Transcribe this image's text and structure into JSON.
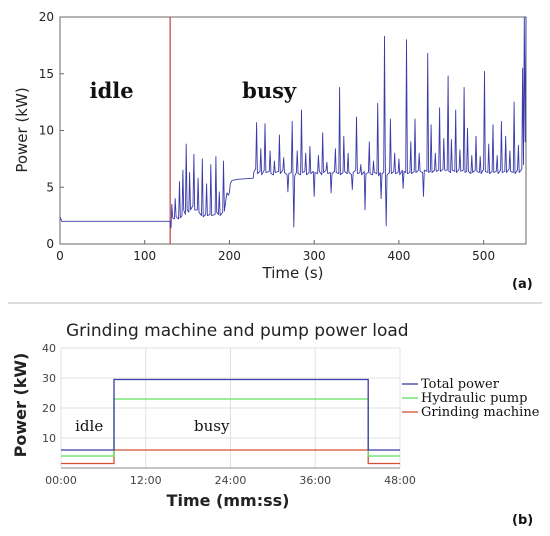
{
  "colors": {
    "total": "#3a3aaa",
    "hydraulic": "#5ee05e",
    "grinding": "#d45030",
    "divider": "#c04040",
    "axis": "#555555",
    "grid": "#e0e0e0"
  },
  "chart_data": [
    {
      "type": "line",
      "panel_label": "(a)",
      "xlabel": "Time (s)",
      "ylabel": "Power (kW)",
      "xlim": [
        0,
        550
      ],
      "ylim": [
        0,
        20
      ],
      "x_ticks": [
        0,
        100,
        200,
        300,
        400,
        500
      ],
      "x_tick_labels": [
        "0",
        "100",
        "200",
        "300",
        "400",
        "500"
      ],
      "y_ticks": [
        0,
        5,
        10,
        15,
        20
      ],
      "y_tick_labels": [
        "0",
        "5",
        "10",
        "15",
        "20"
      ],
      "grid": false,
      "state_change_x": 130,
      "regions": [
        {
          "label": "idle",
          "x": 35,
          "y": 13.5
        },
        {
          "label": "busy",
          "x": 215,
          "y": 13.5
        }
      ],
      "series": [
        {
          "color_key": "total",
          "points": [
            [
              0,
              2.4
            ],
            [
              2,
              2.0
            ],
            [
              130,
              2.0
            ],
            [
              131,
              1.4
            ],
            [
              132,
              3.5
            ],
            [
              133,
              2.3
            ],
            [
              135,
              2.2
            ],
            [
              136,
              4.0
            ],
            [
              137,
              2.4
            ],
            [
              140,
              2.2
            ],
            [
              141,
              5.5
            ],
            [
              142,
              2.3
            ],
            [
              144,
              2.5
            ],
            [
              145,
              6.5
            ],
            [
              146,
              3.0
            ],
            [
              148,
              2.6
            ],
            [
              149,
              8.8
            ],
            [
              150,
              3.0
            ],
            [
              152,
              2.8
            ],
            [
              153,
              6.3
            ],
            [
              154,
              3.0
            ],
            [
              157,
              3.4
            ],
            [
              158,
              7.9
            ],
            [
              159,
              3.0
            ],
            [
              162,
              3.0
            ],
            [
              163,
              5.8
            ],
            [
              164,
              2.8
            ],
            [
              167,
              2.5
            ],
            [
              168,
              7.5
            ],
            [
              169,
              2.4
            ],
            [
              172,
              2.6
            ],
            [
              173,
              5.3
            ],
            [
              174,
              2.5
            ],
            [
              177,
              2.6
            ],
            [
              178,
              7.0
            ],
            [
              179,
              2.5
            ],
            [
              183,
              2.6
            ],
            [
              184,
              7.7
            ],
            [
              185,
              2.8
            ],
            [
              187,
              2.6
            ],
            [
              188,
              4.6
            ],
            [
              189,
              2.5
            ],
            [
              192,
              2.8
            ],
            [
              193,
              7.3
            ],
            [
              194,
              2.9
            ],
            [
              196,
              4.0
            ],
            [
              197,
              4.5
            ],
            [
              199,
              4.3
            ],
            [
              200,
              4.6
            ],
            [
              201,
              5.3
            ],
            [
              203,
              5.6
            ],
            [
              210,
              5.7
            ],
            [
              220,
              5.75
            ],
            [
              228,
              5.8
            ],
            [
              229,
              6.4
            ],
            [
              231,
              6.6
            ],
            [
              232,
              10.7
            ],
            [
              233,
              6.2
            ],
            [
              236,
              6.4
            ],
            [
              237,
              8.4
            ],
            [
              238,
              6.1
            ],
            [
              241,
              6.5
            ],
            [
              242,
              10.6
            ],
            [
              243,
              6.3
            ],
            [
              247,
              6.4
            ],
            [
              248,
              8.2
            ],
            [
              249,
              6.2
            ],
            [
              252,
              6.1
            ],
            [
              253,
              7.3
            ],
            [
              254,
              6.3
            ],
            [
              258,
              6.4
            ],
            [
              259,
              9.6
            ],
            [
              260,
              6.2
            ],
            [
              263,
              6.5
            ],
            [
              264,
              7.6
            ],
            [
              265,
              6.3
            ],
            [
              268,
              6.1
            ],
            [
              269,
              4.6
            ],
            [
              270,
              6.2
            ],
            [
              273,
              6.3
            ],
            [
              274,
              10.8
            ],
            [
              275,
              5.9
            ],
            [
              276,
              1.5
            ],
            [
              277,
              6.0
            ],
            [
              279,
              6.3
            ],
            [
              280,
              8.2
            ],
            [
              281,
              6.2
            ],
            [
              284,
              6.1
            ],
            [
              285,
              11.8
            ],
            [
              286,
              6.3
            ],
            [
              289,
              6.4
            ],
            [
              290,
              8.0
            ],
            [
              291,
              6.1
            ],
            [
              294,
              6.3
            ],
            [
              295,
              8.6
            ],
            [
              296,
              6.2
            ],
            [
              299,
              6.4
            ],
            [
              300,
              4.2
            ],
            [
              301,
              6.3
            ],
            [
              304,
              6.2
            ],
            [
              305,
              7.8
            ],
            [
              306,
              6.4
            ],
            [
              309,
              6.1
            ],
            [
              310,
              9.8
            ],
            [
              311,
              6.3
            ],
            [
              314,
              6.5
            ],
            [
              315,
              7.2
            ],
            [
              316,
              6.2
            ],
            [
              319,
              6.3
            ],
            [
              320,
              4.5
            ],
            [
              321,
              6.2
            ],
            [
              324,
              6.4
            ],
            [
              325,
              8.4
            ],
            [
              326,
              6.3
            ],
            [
              329,
              6.2
            ],
            [
              330,
              13.8
            ],
            [
              331,
              6.1
            ],
            [
              334,
              6.3
            ],
            [
              335,
              9.5
            ],
            [
              336,
              6.4
            ],
            [
              339,
              6.2
            ],
            [
              340,
              8.0
            ],
            [
              341,
              6.3
            ],
            [
              344,
              6.1
            ],
            [
              345,
              4.8
            ],
            [
              346,
              6.3
            ],
            [
              349,
              6.5
            ],
            [
              350,
              11.2
            ],
            [
              351,
              6.2
            ],
            [
              354,
              6.3
            ],
            [
              355,
              7.0
            ],
            [
              356,
              6.1
            ],
            [
              359,
              6.4
            ],
            [
              360,
              3.0
            ],
            [
              361,
              6.2
            ],
            [
              364,
              6.3
            ],
            [
              365,
              9.0
            ],
            [
              366,
              6.2
            ],
            [
              369,
              6.1
            ],
            [
              370,
              7.3
            ],
            [
              371,
              6.3
            ],
            [
              374,
              6.2
            ],
            [
              375,
              12.4
            ],
            [
              376,
              6.0
            ],
            [
              378,
              6.3
            ],
            [
              379,
              4.0
            ],
            [
              380,
              6.2
            ],
            [
              382,
              6.3
            ],
            [
              383,
              18.3
            ],
            [
              384,
              6.0
            ],
            [
              385,
              1.6
            ],
            [
              386,
              6.1
            ],
            [
              389,
              6.3
            ],
            [
              390,
              11.0
            ],
            [
              391,
              6.2
            ],
            [
              394,
              6.4
            ],
            [
              395,
              8.0
            ],
            [
              396,
              6.2
            ],
            [
              399,
              6.3
            ],
            [
              400,
              7.5
            ],
            [
              401,
              6.1
            ],
            [
              404,
              6.5
            ],
            [
              405,
              4.9
            ],
            [
              406,
              6.4
            ],
            [
              408,
              6.3
            ],
            [
              409,
              18.0
            ],
            [
              410,
              6.2
            ],
            [
              413,
              6.3
            ],
            [
              414,
              9.0
            ],
            [
              415,
              6.2
            ],
            [
              418,
              6.4
            ],
            [
              419,
              11.0
            ],
            [
              420,
              6.3
            ],
            [
              423,
              6.5
            ],
            [
              424,
              8.0
            ],
            [
              425,
              6.4
            ],
            [
              428,
              6.3
            ],
            [
              429,
              4.2
            ],
            [
              430,
              6.5
            ],
            [
              433,
              6.4
            ],
            [
              434,
              16.8
            ],
            [
              435,
              6.3
            ],
            [
              437,
              6.4
            ],
            [
              438,
              10.5
            ],
            [
              439,
              6.3
            ],
            [
              442,
              6.5
            ],
            [
              443,
              8.0
            ],
            [
              444,
              6.4
            ],
            [
              447,
              6.5
            ],
            [
              448,
              12.0
            ],
            [
              449,
              6.4
            ],
            [
              452,
              6.6
            ],
            [
              453,
              9.3
            ],
            [
              454,
              6.5
            ],
            [
              457,
              6.5
            ],
            [
              458,
              14.8
            ],
            [
              459,
              6.4
            ],
            [
              461,
              6.3
            ],
            [
              462,
              9.2
            ],
            [
              463,
              6.5
            ],
            [
              466,
              6.4
            ],
            [
              467,
              11.8
            ],
            [
              468,
              6.3
            ],
            [
              471,
              6.6
            ],
            [
              472,
              8.3
            ],
            [
              473,
              6.4
            ],
            [
              476,
              6.5
            ],
            [
              477,
              13.8
            ],
            [
              478,
              6.3
            ],
            [
              480,
              6.4
            ],
            [
              481,
              10.2
            ],
            [
              482,
              6.4
            ],
            [
              485,
              6.2
            ],
            [
              486,
              7.8
            ],
            [
              487,
              6.3
            ],
            [
              490,
              6.5
            ],
            [
              491,
              9.5
            ],
            [
              492,
              6.4
            ],
            [
              495,
              6.3
            ],
            [
              496,
              7.7
            ],
            [
              497,
              6.2
            ],
            [
              500,
              6.6
            ],
            [
              501,
              15.2
            ],
            [
              502,
              6.4
            ],
            [
              505,
              6.3
            ],
            [
              506,
              8.8
            ],
            [
              507,
              6.2
            ],
            [
              510,
              6.4
            ],
            [
              511,
              10.5
            ],
            [
              512,
              6.3
            ],
            [
              515,
              6.4
            ],
            [
              516,
              7.8
            ],
            [
              517,
              6.2
            ],
            [
              520,
              6.5
            ],
            [
              521,
              10.8
            ],
            [
              522,
              6.3
            ],
            [
              525,
              6.4
            ],
            [
              526,
              9.5
            ],
            [
              527,
              6.3
            ],
            [
              530,
              6.6
            ],
            [
              531,
              8.2
            ],
            [
              532,
              6.4
            ],
            [
              535,
              6.3
            ],
            [
              536,
              12.5
            ],
            [
              537,
              6.2
            ],
            [
              540,
              6.5
            ],
            [
              541,
              8.7
            ],
            [
              542,
              6.3
            ],
            [
              545,
              6.6
            ],
            [
              546,
              15.5
            ],
            [
              547,
              7.0
            ],
            [
              548,
              20.0
            ],
            [
              549,
              9.0
            ],
            [
              550,
              20.0
            ]
          ]
        }
      ]
    },
    {
      "type": "line",
      "panel_label": "(b)",
      "title": "Grinding machine and pump power load",
      "xlabel": "Time (mm:ss)",
      "ylabel": "Power (kW)",
      "xlim": [
        0,
        2880
      ],
      "ylim": [
        0,
        40
      ],
      "x_ticks": [
        0,
        720,
        1440,
        2160,
        2880
      ],
      "x_tick_labels": [
        "00:00",
        "12:00",
        "24:00",
        "36:00",
        "48:00"
      ],
      "y_ticks": [
        10,
        20,
        30,
        40
      ],
      "y_tick_labels": [
        "10",
        "20",
        "30",
        "40"
      ],
      "grid": true,
      "legend_position": "right",
      "regions": [
        {
          "label": "idle",
          "x": 120,
          "y": 14
        },
        {
          "label": "busy",
          "x": 1130,
          "y": 14
        }
      ],
      "series": [
        {
          "name": "Total power",
          "color_key": "total",
          "x": [
            0,
            450,
            450,
            2610,
            2610,
            2880
          ],
          "values": [
            6,
            6,
            29.5,
            29.5,
            6,
            6
          ]
        },
        {
          "name": "Hydraulic pump",
          "color_key": "hydraulic",
          "x": [
            0,
            450,
            450,
            2610,
            2610,
            2880
          ],
          "values": [
            4,
            4,
            23,
            23,
            4,
            4
          ]
        },
        {
          "name": "Grinding machine",
          "color_key": "grinding",
          "x": [
            0,
            450,
            450,
            2610,
            2610,
            2880
          ],
          "values": [
            1.5,
            1.5,
            6,
            6,
            1.5,
            1.5
          ]
        }
      ]
    }
  ]
}
